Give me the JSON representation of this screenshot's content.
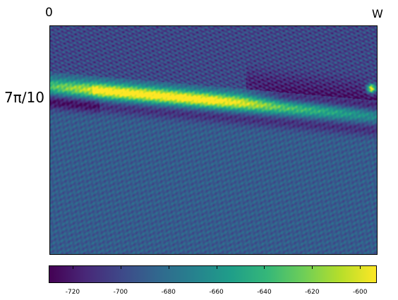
{
  "chart_data": {
    "type": "heatmap",
    "corner_labels": {
      "top_left": "0",
      "top_right": "W"
    },
    "y_tick_label": "7π/10",
    "colormap": "viridis",
    "colorbar": {
      "range": [
        -730,
        -593
      ],
      "ticks": [
        -720,
        -700,
        -680,
        -660,
        -640,
        -620,
        -600
      ],
      "tick_labels": [
        "-720",
        "-700",
        "-680",
        "-660",
        "-640",
        "-620",
        "-600"
      ]
    },
    "features": [
      {
        "name": "bright band",
        "value_max": -600,
        "description": "diagonal high-value ridge descending from left to right"
      },
      {
        "name": "dark band",
        "value_min": -730,
        "description": "low-value band just below and above the ridge"
      }
    ],
    "background_value_approx": -690
  },
  "colors": {
    "viridis": [
      "#440154",
      "#482878",
      "#3e4989",
      "#31688e",
      "#26828e",
      "#1f9e89",
      "#35b779",
      "#6ece58",
      "#b5de2b",
      "#fde725"
    ]
  }
}
